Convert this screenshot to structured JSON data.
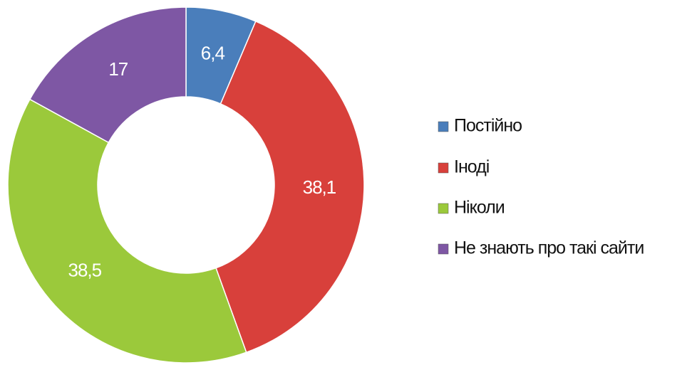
{
  "chart_data": {
    "type": "donut",
    "categories": [
      "Постійно",
      "Іноді",
      "Ніколи",
      "Не знають про такі сайти"
    ],
    "values": [
      6.4,
      38.1,
      38.5,
      17
    ],
    "value_labels": [
      "6,4",
      "38,1",
      "38,5",
      "17"
    ],
    "colors": [
      "#4a7ebb",
      "#d8403b",
      "#9bc93b",
      "#7e57a4"
    ],
    "legend": "right"
  }
}
